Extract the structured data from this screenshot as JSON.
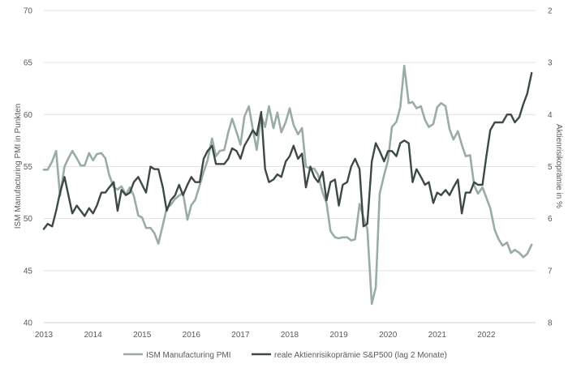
{
  "chart_data": {
    "type": "line",
    "title": "",
    "ylabel": "ISM Manufacturing PMI in Punkten",
    "y2label": "Aktienrisikoprämie in %",
    "ylim": [
      40,
      70
    ],
    "y2lim": [
      2,
      8
    ],
    "y2_inverted": true,
    "yticks": [
      "40",
      "45",
      "50",
      "55",
      "60",
      "65",
      "70"
    ],
    "y2ticks": [
      "2",
      "3",
      "4",
      "5",
      "6",
      "7",
      "8"
    ],
    "xlim": [
      2013.0,
      2023.0
    ],
    "xticks": [
      "2013",
      "2014",
      "2015",
      "2016",
      "2017",
      "2018",
      "2019",
      "2020",
      "2021",
      "2022"
    ],
    "grid": "horizontal",
    "legend_position": "bottom",
    "series": [
      {
        "name": "ISM Manufacturing PMI",
        "axis": "left",
        "color": "#9aaca6",
        "x": [
          2013.0,
          2013.08,
          2013.17,
          2013.25,
          2013.33,
          2013.42,
          2013.5,
          2013.58,
          2013.67,
          2013.75,
          2013.83,
          2013.92,
          2014.0,
          2014.08,
          2014.17,
          2014.25,
          2014.33,
          2014.42,
          2014.5,
          2014.58,
          2014.67,
          2014.75,
          2014.83,
          2014.92,
          2015.0,
          2015.08,
          2015.17,
          2015.25,
          2015.33,
          2015.42,
          2015.5,
          2015.58,
          2015.67,
          2015.75,
          2015.83,
          2015.92,
          2016.0,
          2016.08,
          2016.17,
          2016.25,
          2016.33,
          2016.42,
          2016.5,
          2016.58,
          2016.67,
          2016.75,
          2016.83,
          2016.92,
          2017.0,
          2017.08,
          2017.17,
          2017.25,
          2017.33,
          2017.42,
          2017.5,
          2017.58,
          2017.67,
          2017.75,
          2017.83,
          2017.92,
          2018.0,
          2018.08,
          2018.17,
          2018.25,
          2018.33,
          2018.42,
          2018.5,
          2018.58,
          2018.67,
          2018.75,
          2018.83,
          2018.92,
          2019.0,
          2019.08,
          2019.17,
          2019.25,
          2019.33,
          2019.42,
          2019.5,
          2019.58,
          2019.67,
          2019.75,
          2019.83,
          2019.92,
          2020.0,
          2020.08,
          2020.17,
          2020.25,
          2020.33,
          2020.42,
          2020.5,
          2020.58,
          2020.67,
          2020.75,
          2020.83,
          2020.92,
          2021.0,
          2021.08,
          2021.17,
          2021.25,
          2021.33,
          2021.42,
          2021.5,
          2021.58,
          2021.67,
          2021.75,
          2021.83,
          2021.92,
          2022.0,
          2022.08,
          2022.17,
          2022.25,
          2022.33,
          2022.42,
          2022.5,
          2022.58,
          2022.67,
          2022.75,
          2022.83,
          2022.92
        ],
        "values": [
          54.7,
          54.7,
          55.5,
          56.5,
          52.2,
          55.0,
          55.8,
          56.5,
          55.8,
          55.1,
          55.1,
          56.3,
          55.6,
          56.2,
          56.3,
          55.8,
          54.2,
          53.0,
          52.8,
          53.1,
          52.3,
          53.0,
          52.2,
          50.3,
          50.1,
          49.1,
          49.1,
          48.6,
          47.6,
          49.4,
          51.0,
          51.3,
          51.9,
          52.2,
          52.5,
          49.9,
          51.3,
          51.8,
          53.2,
          54.5,
          55.6,
          57.7,
          56.0,
          56.5,
          56.6,
          58.3,
          59.6,
          58.3,
          57.1,
          59.8,
          60.8,
          58.6,
          56.6,
          59.9,
          58.8,
          60.8,
          58.7,
          60.2,
          58.3,
          59.3,
          60.6,
          59.0,
          58.1,
          58.7,
          55.0,
          54.8,
          54.8,
          54.2,
          52.5,
          51.5,
          48.8,
          48.2,
          48.1,
          48.2,
          48.2,
          47.9,
          48.0,
          51.4,
          50.1,
          49.0,
          41.8,
          43.4,
          52.4,
          54.2,
          55.6,
          58.8,
          59.3,
          60.7,
          64.7,
          61.1,
          61.2,
          60.6,
          60.8,
          59.5,
          58.8,
          59.1,
          60.7,
          61.1,
          60.8,
          58.6,
          57.6,
          58.4,
          57.1,
          56.0,
          56.1,
          53.2,
          52.4,
          53.0,
          52.0,
          51.0,
          48.9,
          48.0,
          47.4,
          47.7,
          46.7,
          47.0,
          46.7,
          46.3,
          46.6,
          47.5
        ]
      },
      {
        "name": "reale Aktienrisikoprämie S&P500 (lag 2 Monate)",
        "axis": "right",
        "color": "#3d4a44",
        "x": [
          2013.0,
          2013.08,
          2013.17,
          2013.25,
          2013.33,
          2013.42,
          2013.5,
          2013.58,
          2013.67,
          2013.75,
          2013.83,
          2013.92,
          2014.0,
          2014.08,
          2014.17,
          2014.25,
          2014.33,
          2014.42,
          2014.5,
          2014.58,
          2014.67,
          2014.75,
          2014.83,
          2014.92,
          2015.0,
          2015.08,
          2015.17,
          2015.25,
          2015.33,
          2015.42,
          2015.5,
          2015.58,
          2015.67,
          2015.75,
          2015.83,
          2015.92,
          2016.0,
          2016.08,
          2016.17,
          2016.25,
          2016.33,
          2016.42,
          2016.5,
          2016.58,
          2016.67,
          2016.75,
          2016.83,
          2016.92,
          2017.0,
          2017.08,
          2017.17,
          2017.25,
          2017.33,
          2017.42,
          2017.5,
          2017.58,
          2017.67,
          2017.75,
          2017.83,
          2017.92,
          2018.0,
          2018.08,
          2018.17,
          2018.25,
          2018.33,
          2018.42,
          2018.5,
          2018.58,
          2018.67,
          2018.75,
          2018.83,
          2018.92,
          2019.0,
          2019.08,
          2019.17,
          2019.25,
          2019.33,
          2019.42,
          2019.5,
          2019.58,
          2019.67,
          2019.75,
          2019.83,
          2019.92,
          2020.0,
          2020.08,
          2020.17,
          2020.25,
          2020.33,
          2020.42,
          2020.5,
          2020.58,
          2020.67,
          2020.75,
          2020.83,
          2020.92,
          2021.0,
          2021.08,
          2021.17,
          2021.25,
          2021.33,
          2021.42,
          2021.5,
          2021.58,
          2021.67,
          2021.75,
          2021.83,
          2021.92,
          2022.0,
          2022.08,
          2022.17,
          2022.25,
          2022.33,
          2022.42,
          2022.5,
          2022.58,
          2022.67,
          2022.75,
          2022.83,
          2022.92
        ],
        "values": [
          6.2,
          6.1,
          6.15,
          5.85,
          5.5,
          5.2,
          5.55,
          5.9,
          5.75,
          5.85,
          5.95,
          5.8,
          5.9,
          5.75,
          5.5,
          5.5,
          5.4,
          5.3,
          5.85,
          5.45,
          5.55,
          5.5,
          5.3,
          5.2,
          5.35,
          5.5,
          5.0,
          5.05,
          5.05,
          5.4,
          5.85,
          5.65,
          5.55,
          5.35,
          5.55,
          5.35,
          5.2,
          5.3,
          5.3,
          4.85,
          4.7,
          4.6,
          4.95,
          4.95,
          4.95,
          4.85,
          4.65,
          4.7,
          4.85,
          4.6,
          4.45,
          4.3,
          4.4,
          3.95,
          5.05,
          5.3,
          5.25,
          5.15,
          5.2,
          4.9,
          4.8,
          4.6,
          4.85,
          4.75,
          5.4,
          5.0,
          5.2,
          5.3,
          5.1,
          5.65,
          5.3,
          5.25,
          5.75,
          5.35,
          5.3,
          5.0,
          4.85,
          5.05,
          6.15,
          6.1,
          4.9,
          4.55,
          4.7,
          4.9,
          4.7,
          4.7,
          4.8,
          4.55,
          4.5,
          4.55,
          5.3,
          5.05,
          5.2,
          5.35,
          5.3,
          5.7,
          5.5,
          5.55,
          5.45,
          5.55,
          5.4,
          5.25,
          5.9,
          5.5,
          5.5,
          5.3,
          5.35,
          5.35,
          4.8,
          4.3,
          4.15,
          4.15,
          4.15,
          4.0,
          4.0,
          4.15,
          4.05,
          3.8,
          3.6,
          3.2
        ]
      }
    ]
  }
}
